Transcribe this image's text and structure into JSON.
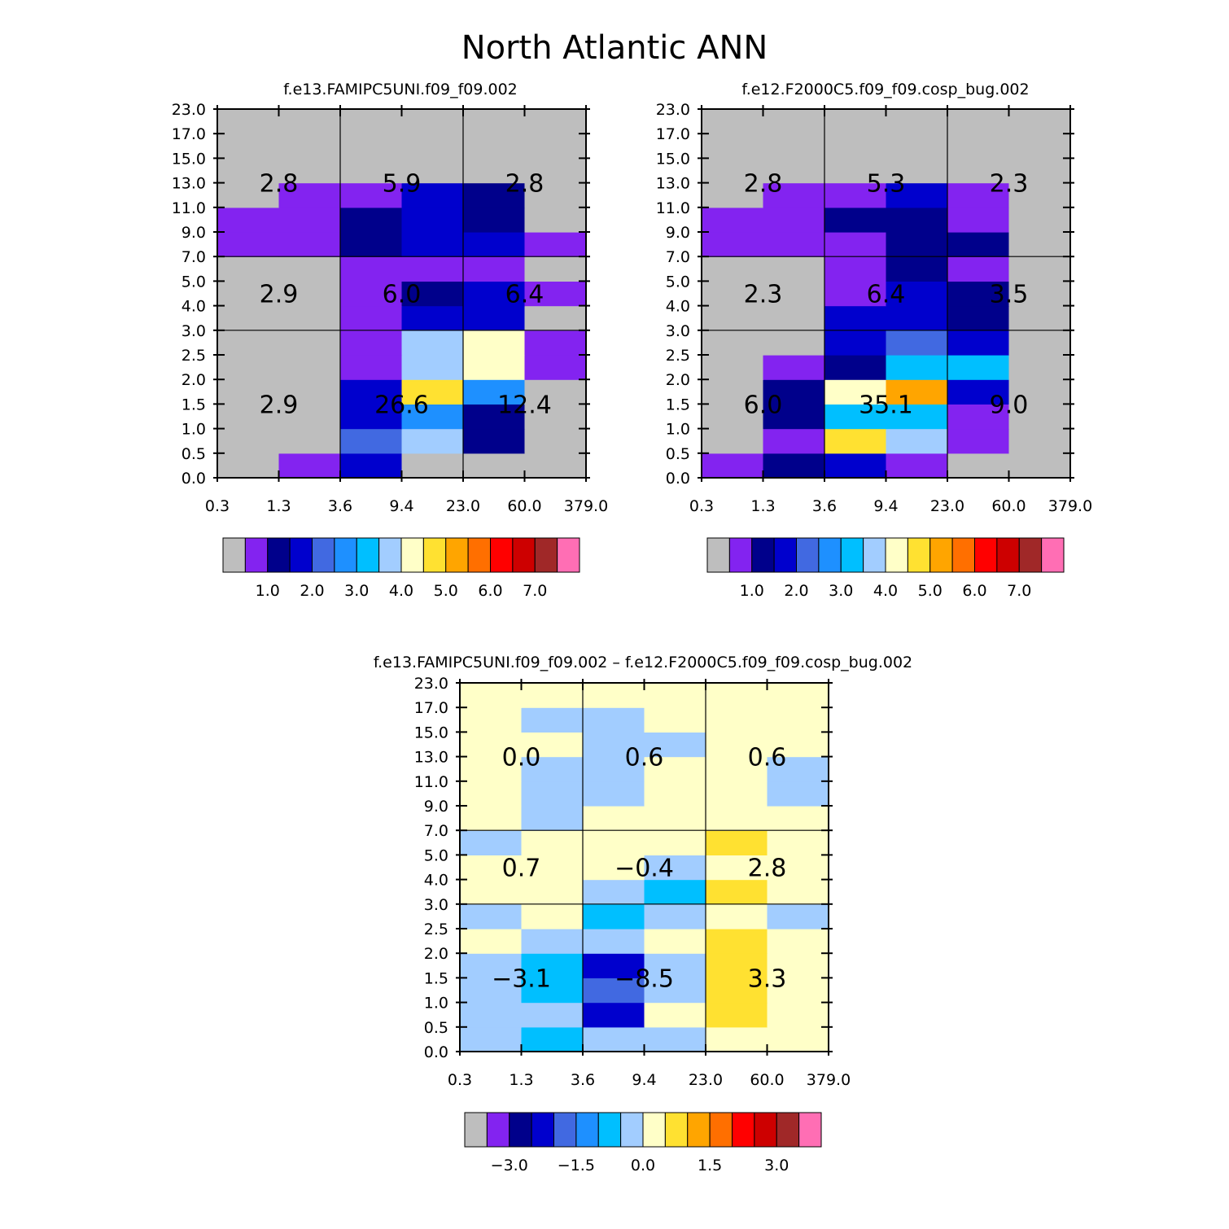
{
  "title": "North Atlantic ANN",
  "colors": {
    "scale": [
      "#bebebe",
      "#8323f0",
      "#00008b",
      "#0000cd",
      "#4169e1",
      "#1e90ff",
      "#00bfff",
      "#a2cdff",
      "#ffffc8",
      "#ffe131",
      "#ffa500",
      "#ff6f00",
      "#ff0000",
      "#cd0000",
      "#a02828",
      "#ff6eb4"
    ],
    "grid_line": "#000000",
    "tick_line": "#000000"
  },
  "chart_data": [
    {
      "type": "heatmap",
      "id": "p1",
      "title": "f.e13.FAMIPC5UNI.f09_f09.002",
      "xticks": [
        "0.3",
        "1.3",
        "3.6",
        "9.4",
        "23.0",
        "60.0",
        "379.0"
      ],
      "yticks": [
        "0.0",
        "0.5",
        "1.0",
        "1.5",
        "2.0",
        "2.5",
        "3.0",
        "4.0",
        "5.0",
        "7.0",
        "9.0",
        "11.0",
        "13.0",
        "15.0",
        "17.0",
        "23.0"
      ],
      "cells": [
        [
          0,
          1,
          3,
          0,
          0,
          0
        ],
        [
          0,
          0,
          4,
          7,
          2,
          0
        ],
        [
          0,
          0,
          3,
          5,
          2,
          0
        ],
        [
          0,
          0,
          3,
          9,
          5,
          0
        ],
        [
          0,
          0,
          1,
          7,
          8,
          1
        ],
        [
          0,
          0,
          1,
          7,
          8,
          1
        ],
        [
          0,
          0,
          1,
          3,
          3,
          0
        ],
        [
          0,
          0,
          1,
          2,
          3,
          1
        ],
        [
          0,
          0,
          1,
          1,
          1,
          0
        ],
        [
          1,
          1,
          2,
          3,
          3,
          1
        ],
        [
          1,
          1,
          2,
          3,
          2,
          0
        ],
        [
          0,
          1,
          1,
          3,
          2,
          0
        ],
        [
          0,
          0,
          0,
          0,
          0,
          0
        ],
        [
          0,
          0,
          0,
          0,
          0,
          0
        ],
        [
          0,
          0,
          0,
          0,
          0,
          0
        ]
      ],
      "region_labels": [
        [
          "2.9",
          "26.6",
          "12.4"
        ],
        [
          "2.9",
          "6.0",
          "6.4"
        ],
        [
          "2.8",
          "5.9",
          "2.8"
        ]
      ],
      "colorbar_labels": [
        "1.0",
        "2.0",
        "3.0",
        "4.0",
        "5.0",
        "6.0",
        "7.0"
      ]
    },
    {
      "type": "heatmap",
      "id": "p2",
      "title": "f.e12.F2000C5.f09_f09.cosp_bug.002",
      "xticks": [
        "0.3",
        "1.3",
        "3.6",
        "9.4",
        "23.0",
        "60.0",
        "379.0"
      ],
      "yticks": [
        "0.0",
        "0.5",
        "1.0",
        "1.5",
        "2.0",
        "2.5",
        "3.0",
        "4.0",
        "5.0",
        "7.0",
        "9.0",
        "11.0",
        "13.0",
        "15.0",
        "17.0",
        "23.0"
      ],
      "cells": [
        [
          1,
          2,
          3,
          1,
          0,
          0
        ],
        [
          0,
          1,
          9,
          7,
          1,
          0
        ],
        [
          0,
          2,
          6,
          6,
          1,
          0
        ],
        [
          0,
          2,
          8,
          10,
          3,
          0
        ],
        [
          0,
          1,
          2,
          6,
          6,
          0
        ],
        [
          0,
          0,
          3,
          4,
          3,
          0
        ],
        [
          0,
          0,
          3,
          3,
          2,
          0
        ],
        [
          0,
          0,
          1,
          3,
          2,
          0
        ],
        [
          0,
          0,
          1,
          2,
          1,
          0
        ],
        [
          1,
          1,
          1,
          2,
          2,
          0
        ],
        [
          1,
          1,
          2,
          2,
          1,
          0
        ],
        [
          0,
          1,
          1,
          3,
          1,
          0
        ],
        [
          0,
          0,
          0,
          0,
          0,
          0
        ],
        [
          0,
          0,
          0,
          0,
          0,
          0
        ],
        [
          0,
          0,
          0,
          0,
          0,
          0
        ]
      ],
      "region_labels": [
        [
          "6.0",
          "35.1",
          "9.0"
        ],
        [
          "2.3",
          "6.4",
          "3.5"
        ],
        [
          "2.8",
          "5.3",
          "2.3"
        ]
      ],
      "colorbar_labels": [
        "1.0",
        "2.0",
        "3.0",
        "4.0",
        "5.0",
        "6.0",
        "7.0"
      ]
    },
    {
      "type": "heatmap",
      "id": "p3",
      "title": "f.e13.FAMIPC5UNI.f09_f09.002 – f.e12.F2000C5.f09_f09.cosp_bug.002",
      "xticks": [
        "0.3",
        "1.3",
        "3.6",
        "9.4",
        "23.0",
        "60.0",
        "379.0"
      ],
      "yticks": [
        "0.0",
        "0.5",
        "1.0",
        "1.5",
        "2.0",
        "2.5",
        "3.0",
        "4.0",
        "5.0",
        "7.0",
        "9.0",
        "11.0",
        "13.0",
        "15.0",
        "17.0",
        "23.0"
      ],
      "cells": [
        [
          7,
          6,
          7,
          7,
          8,
          8
        ],
        [
          7,
          7,
          3,
          8,
          9,
          8
        ],
        [
          7,
          6,
          4,
          7,
          9,
          8
        ],
        [
          7,
          6,
          3,
          7,
          9,
          8
        ],
        [
          8,
          7,
          7,
          8,
          9,
          8
        ],
        [
          7,
          8,
          6,
          7,
          8,
          7
        ],
        [
          8,
          8,
          7,
          6,
          9,
          8
        ],
        [
          8,
          8,
          8,
          7,
          8,
          8
        ],
        [
          7,
          8,
          8,
          8,
          9,
          8
        ],
        [
          8,
          7,
          8,
          8,
          8,
          8
        ],
        [
          8,
          7,
          7,
          8,
          8,
          7
        ],
        [
          8,
          7,
          7,
          8,
          8,
          7
        ],
        [
          8,
          8,
          7,
          7,
          8,
          8
        ],
        [
          8,
          7,
          7,
          8,
          8,
          8
        ],
        [
          8,
          8,
          8,
          8,
          8,
          8
        ]
      ],
      "region_labels": [
        [
          "−3.1",
          "−8.5",
          "3.3"
        ],
        [
          "0.7",
          "−0.4",
          "2.8"
        ],
        [
          "0.0",
          "0.6",
          "0.6"
        ]
      ],
      "colorbar_labels": [
        "−3.0",
        "−1.5",
        "0.0",
        "1.5",
        "3.0"
      ]
    }
  ]
}
